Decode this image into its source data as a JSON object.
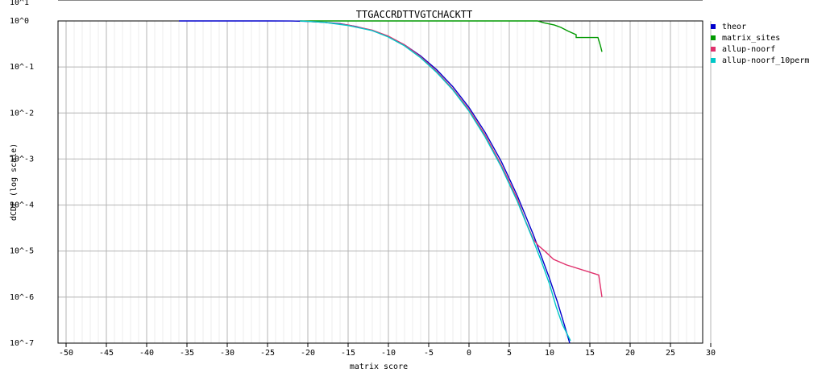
{
  "chart_data": {
    "type": "line",
    "title": "TTGACCRDTTVGTCHACKTT",
    "xlabel": "matrix score",
    "ylabel": "dCDF (log scale)",
    "x_ticks": [
      -50,
      -45,
      -40,
      -35,
      -30,
      -25,
      -20,
      -15,
      -10,
      -5,
      0,
      5,
      10,
      15,
      20,
      25,
      30
    ],
    "y_tick_labels": [
      "10^1",
      "10^0",
      "10^-1",
      "10^-2",
      "10^-3",
      "10^-4",
      "10^-5",
      "10^-6",
      "10^-7"
    ],
    "xlim": [
      -51,
      29
    ],
    "ylim_log10": [
      -7,
      0
    ],
    "yscale": "log",
    "grid": true,
    "legend_position": "right",
    "series": [
      {
        "name": "theor",
        "color": "#0000cc",
        "x": [
          -36,
          -30,
          -25,
          -22,
          -20,
          -18,
          -16,
          -14,
          -12,
          -10,
          -8,
          -6,
          -4,
          -2,
          0,
          2,
          4,
          6,
          8,
          10,
          11,
          12,
          12.5
        ],
        "log10_y": [
          0,
          0,
          0,
          -0.002,
          -0.01,
          -0.03,
          -0.06,
          -0.12,
          -0.21,
          -0.34,
          -0.52,
          -0.76,
          -1.06,
          -1.43,
          -1.88,
          -2.42,
          -3.05,
          -3.8,
          -4.65,
          -5.6,
          -6.12,
          -6.7,
          -7.0
        ]
      },
      {
        "name": "matrix_sites",
        "color": "#009900",
        "x": [
          -21,
          -10,
          0,
          8.5,
          9.3,
          10.6,
          11.4,
          12.3,
          13.3,
          13.3,
          16,
          16.3,
          16.5
        ],
        "log10_y": [
          0,
          0,
          0,
          0,
          -0.04,
          -0.09,
          -0.14,
          -0.22,
          -0.3,
          -0.36,
          -0.36,
          -0.53,
          -0.67
        ]
      },
      {
        "name": "allup-noorf",
        "color": "#e0306c",
        "x": [
          -21,
          -18,
          -15,
          -12,
          -10,
          -8,
          -6,
          -4,
          -2,
          0,
          2,
          4,
          6,
          7,
          8,
          8.6,
          9.4,
          10.5,
          12.1,
          16.1,
          16.5
        ],
        "log10_y": [
          0,
          -0.03,
          -0.09,
          -0.2,
          -0.33,
          -0.52,
          -0.78,
          -1.1,
          -1.48,
          -1.93,
          -2.48,
          -3.13,
          -3.87,
          -4.34,
          -4.75,
          -4.88,
          -5.0,
          -5.18,
          -5.3,
          -5.52,
          -6.0
        ]
      },
      {
        "name": "allup-noorf_10perm",
        "color": "#00c8c8",
        "x": [
          -21,
          -18,
          -15,
          -12,
          -10,
          -8,
          -6,
          -4,
          -2,
          0,
          2,
          4,
          6,
          7,
          8,
          9,
          10,
          10.8,
          11.6,
          12.6
        ],
        "log10_y": [
          0,
          -0.03,
          -0.1,
          -0.21,
          -0.35,
          -0.54,
          -0.8,
          -1.12,
          -1.5,
          -1.96,
          -2.52,
          -3.17,
          -3.92,
          -4.35,
          -4.78,
          -5.23,
          -5.72,
          -6.2,
          -6.6,
          -6.95
        ]
      }
    ]
  }
}
